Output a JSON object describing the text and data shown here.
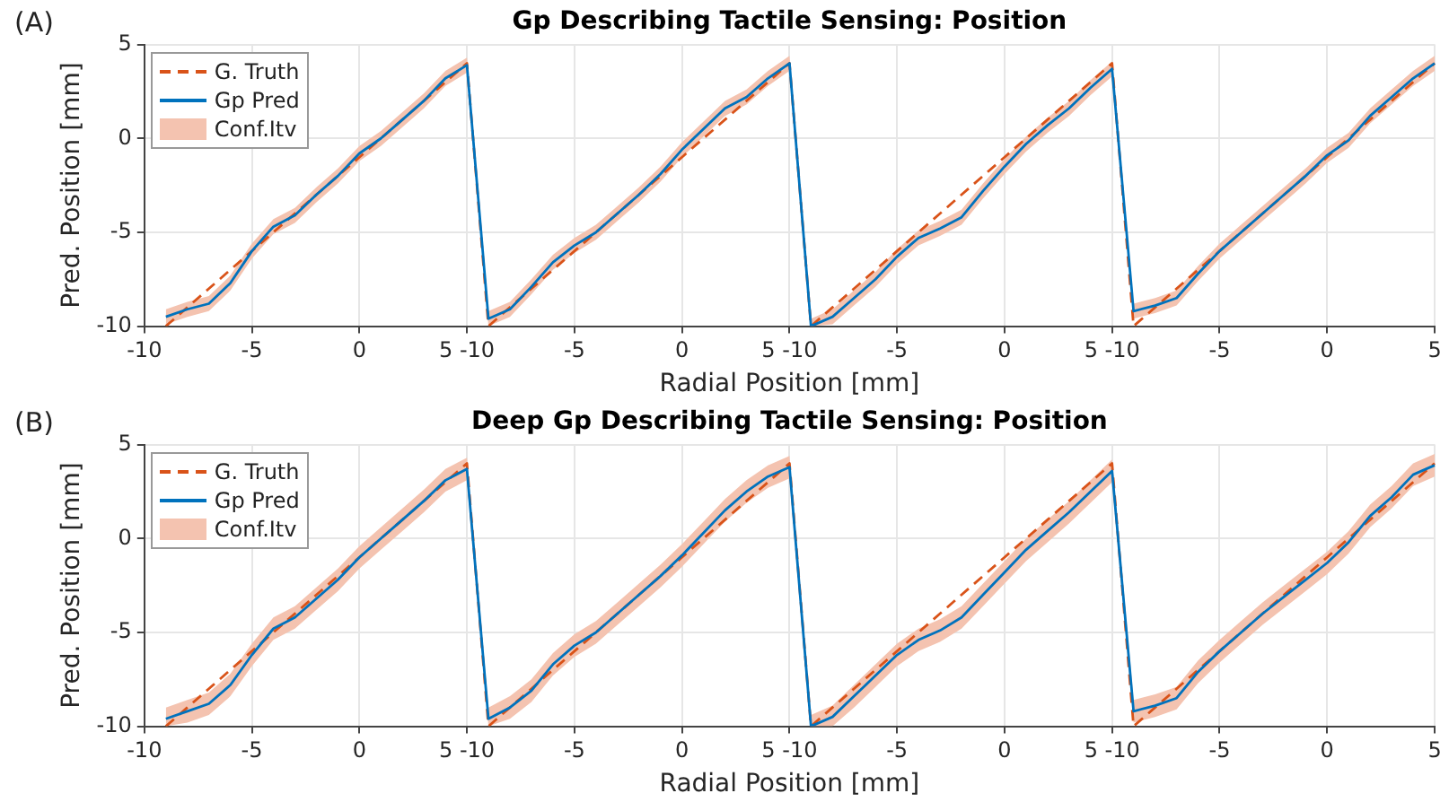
{
  "chart_data": [
    {
      "type": "line",
      "title": "Gp Describing Tactile Sensing: Position",
      "xlabel": "Radial Position [mm]",
      "ylabel": "Pred. Position [mm]",
      "annotations": [
        "(A)",
        "Conf.Itv"
      ],
      "categories": [
        "-10",
        null,
        null,
        null,
        null,
        "-5",
        null,
        null,
        null,
        null,
        "0",
        null,
        null,
        null,
        null,
        "5 -10",
        null,
        null,
        null,
        null,
        "-5",
        null,
        null,
        null,
        null,
        "0",
        null,
        null,
        null,
        null,
        "5 -10",
        null,
        null,
        null,
        null,
        "-5",
        null,
        null,
        null,
        null,
        "0",
        null,
        null,
        null,
        null,
        "5 -10",
        null,
        null,
        null,
        null,
        "-5",
        null,
        null,
        null,
        null,
        "0",
        null,
        null,
        null,
        null,
        "5"
      ],
      "ylim": [
        -10,
        5
      ],
      "yticks": [
        -10,
        -5,
        0,
        5
      ],
      "grid": true,
      "legend": "top left",
      "series": [
        {
          "name": "G. Truth",
          "color": "#d95319",
          "line_style": "dashed",
          "values": [
            null,
            -10,
            -9,
            -8,
            -7,
            -6,
            -5,
            -4,
            -3,
            -2,
            -1,
            0,
            1,
            2,
            3,
            4,
            -10,
            -9,
            -8,
            -7,
            -6,
            -5,
            -4,
            -3,
            -2,
            -1,
            0,
            1,
            2,
            3,
            4,
            -10,
            -9,
            -8,
            -7,
            -6,
            -5,
            -4,
            -3,
            -2,
            -1,
            0,
            1,
            2,
            3,
            4,
            -10,
            -9,
            -8,
            -7,
            -6,
            -5,
            -4,
            -3,
            -2,
            -1,
            0,
            1,
            2,
            3,
            4
          ]
        },
        {
          "name": "Gp Pred",
          "color": "#0072bd",
          "line_style": "solid",
          "values": [
            null,
            -9.5,
            -9.1,
            -8.8,
            -7.7,
            -6,
            -4.7,
            -4.1,
            -3,
            -2,
            -0.8,
            0,
            1,
            2,
            3.2,
            3.9,
            -9.6,
            -9.1,
            -7.9,
            -6.6,
            -5.7,
            -5,
            -4,
            -3,
            -1.9,
            -0.6,
            0.5,
            1.6,
            2.2,
            3.2,
            4,
            -10,
            -9.5,
            -8.5,
            -7.5,
            -6.3,
            -5.3,
            -4.8,
            -4.2,
            -2.8,
            -1.5,
            -0.3,
            0.7,
            1.6,
            2.7,
            3.7,
            -9.2,
            -8.9,
            -8.5,
            -7.2,
            -6,
            -5,
            -4,
            -3,
            -2,
            -0.9,
            -0.1,
            1.2,
            2.2,
            3.2,
            4
          ],
          "lower": [
            null,
            -9.9,
            -9.5,
            -9.2,
            -8.1,
            -6.4,
            -5.1,
            -4.5,
            -3.4,
            -2.4,
            -1.2,
            -0.4,
            0.6,
            1.6,
            2.8,
            3.5,
            -10,
            -9.5,
            -8.3,
            -7,
            -6.1,
            -5.4,
            -4.4,
            -3.4,
            -2.3,
            -1,
            0.1,
            1.2,
            1.8,
            2.8,
            3.6,
            -10,
            -9.9,
            -8.9,
            -7.9,
            -6.7,
            -5.7,
            -5.2,
            -4.6,
            -3.2,
            -1.9,
            -0.7,
            0.3,
            1.2,
            2.3,
            3.3,
            -9.6,
            -9.3,
            -8.9,
            -7.6,
            -6.4,
            -5.4,
            -4.4,
            -3.4,
            -2.4,
            -1.3,
            -0.5,
            0.8,
            1.8,
            2.8,
            3.6
          ],
          "upper": [
            null,
            -9.1,
            -8.7,
            -8.4,
            -7.3,
            -5.6,
            -4.3,
            -3.7,
            -2.6,
            -1.6,
            -0.4,
            0.4,
            1.4,
            2.4,
            3.6,
            4.3,
            -9.2,
            -8.7,
            -7.5,
            -6.2,
            -5.3,
            -4.6,
            -3.6,
            -2.6,
            -1.5,
            -0.2,
            0.9,
            2,
            2.6,
            3.6,
            4.4,
            -9.6,
            -9.1,
            -8.1,
            -7.1,
            -5.9,
            -4.9,
            -4.4,
            -3.8,
            -2.4,
            -1.1,
            0.1,
            1.1,
            2,
            3.1,
            4.1,
            -8.8,
            -8.5,
            -8.1,
            -6.8,
            -5.6,
            -4.6,
            -3.6,
            -2.6,
            -1.6,
            -0.5,
            0.3,
            1.6,
            2.6,
            3.6,
            4.4
          ]
        }
      ]
    },
    {
      "type": "line",
      "title": "Deep Gp Describing Tactile Sensing: Position",
      "xlabel": "Radial Position [mm]",
      "ylabel": "Pred. Position [mm]",
      "annotations": [
        "(B)",
        "Conf.Itv"
      ],
      "categories": [
        "-10",
        null,
        null,
        null,
        null,
        "-5",
        null,
        null,
        null,
        null,
        "0",
        null,
        null,
        null,
        null,
        "5 -10",
        null,
        null,
        null,
        null,
        "-5",
        null,
        null,
        null,
        null,
        "0",
        null,
        null,
        null,
        null,
        "5 -10",
        null,
        null,
        null,
        null,
        "-5",
        null,
        null,
        null,
        null,
        "0",
        null,
        null,
        null,
        null,
        "5 -10",
        null,
        null,
        null,
        null,
        "-5",
        null,
        null,
        null,
        null,
        "0",
        null,
        null,
        null,
        null,
        "5"
      ],
      "ylim": [
        -10,
        5
      ],
      "yticks": [
        -10,
        -5,
        0,
        5
      ],
      "grid": true,
      "legend": "top left",
      "series": [
        {
          "name": "G. Truth",
          "color": "#d95319",
          "line_style": "dashed",
          "values": [
            null,
            -10,
            -9,
            -8,
            -7,
            -6,
            -5,
            -4,
            -3,
            -2,
            -1,
            0,
            1,
            2,
            3,
            4,
            -10,
            -9,
            -8,
            -7,
            -6,
            -5,
            -4,
            -3,
            -2,
            -1,
            0,
            1,
            2,
            3,
            4,
            -10,
            -9,
            -8,
            -7,
            -6,
            -5,
            -4,
            -3,
            -2,
            -1,
            0,
            1,
            2,
            3,
            4,
            -10,
            -9,
            -8,
            -7,
            -6,
            -5,
            -4,
            -3,
            -2,
            -1,
            0,
            1,
            2,
            3,
            4
          ]
        },
        {
          "name": "Gp Pred",
          "color": "#0072bd",
          "line_style": "solid",
          "values": [
            null,
            -9.6,
            -9.2,
            -8.8,
            -7.8,
            -6.2,
            -4.8,
            -4.2,
            -3.2,
            -2.2,
            -1,
            0,
            1,
            2,
            3.1,
            3.7,
            -9.6,
            -9,
            -8.1,
            -6.7,
            -5.7,
            -5,
            -4,
            -3,
            -2,
            -0.9,
            0.3,
            1.5,
            2.5,
            3.3,
            3.8,
            -10,
            -9.5,
            -8.4,
            -7.3,
            -6.2,
            -5.4,
            -4.9,
            -4.2,
            -3,
            -1.8,
            -0.6,
            0.4,
            1.4,
            2.5,
            3.6,
            -9.2,
            -8.9,
            -8.5,
            -7.1,
            -6,
            -5,
            -4,
            -3.1,
            -2.2,
            -1.3,
            -0.2,
            1.2,
            2.2,
            3.4,
            3.9
          ],
          "lower": [
            null,
            -10,
            -9.8,
            -9.4,
            -8.4,
            -6.8,
            -5.4,
            -4.8,
            -3.8,
            -2.8,
            -1.6,
            -0.6,
            0.4,
            1.4,
            2.5,
            3.1,
            -10,
            -9.6,
            -8.7,
            -7.3,
            -6.3,
            -5.6,
            -4.6,
            -3.6,
            -2.6,
            -1.5,
            -0.3,
            0.9,
            1.9,
            2.7,
            3.2,
            -10,
            -10,
            -9,
            -7.9,
            -6.8,
            -6,
            -5.5,
            -4.8,
            -3.6,
            -2.4,
            -1.2,
            -0.2,
            0.8,
            1.9,
            3,
            -9.8,
            -9.5,
            -9.1,
            -7.7,
            -6.6,
            -5.6,
            -4.6,
            -3.7,
            -2.8,
            -1.9,
            -0.8,
            0.6,
            1.6,
            2.8,
            3.3
          ],
          "upper": [
            null,
            -9,
            -8.6,
            -8.2,
            -7.2,
            -5.6,
            -4.2,
            -3.6,
            -2.6,
            -1.6,
            -0.4,
            0.6,
            1.6,
            2.6,
            3.7,
            4.3,
            -9,
            -8.4,
            -7.5,
            -6.1,
            -5.1,
            -4.4,
            -3.4,
            -2.4,
            -1.4,
            -0.3,
            0.9,
            2.1,
            3.1,
            3.9,
            4.4,
            -9.4,
            -8.9,
            -7.8,
            -6.7,
            -5.6,
            -4.8,
            -4.3,
            -3.6,
            -2.4,
            -1.2,
            0,
            1,
            2,
            3.1,
            4.2,
            -8.6,
            -8.3,
            -7.9,
            -6.5,
            -5.4,
            -4.4,
            -3.4,
            -2.5,
            -1.6,
            -0.7,
            0.4,
            1.8,
            2.8,
            4,
            4.5
          ]
        }
      ]
    }
  ]
}
